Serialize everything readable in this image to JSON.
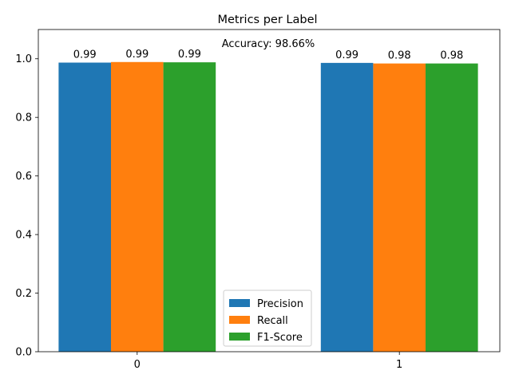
{
  "chart_data": {
    "type": "bar",
    "title": "Metrics per Label",
    "annotation": "Accuracy: 98.66%",
    "categories": [
      "0",
      "1"
    ],
    "series": [
      {
        "name": "Precision",
        "values": [
          0.987,
          0.986
        ],
        "labels": [
          "0.99",
          "0.99"
        ],
        "color": "#1f77b4"
      },
      {
        "name": "Recall",
        "values": [
          0.989,
          0.984
        ],
        "labels": [
          "0.99",
          "0.98"
        ],
        "color": "#ff7f0e"
      },
      {
        "name": "F1-Score",
        "values": [
          0.988,
          0.984
        ],
        "labels": [
          "0.99",
          "0.98"
        ],
        "color": "#2ca02c"
      }
    ],
    "ylim": [
      0,
      1.1
    ],
    "yticks": [
      "0.0",
      "0.2",
      "0.4",
      "0.6",
      "0.8",
      "1.0"
    ],
    "xlabel": "",
    "ylabel": "",
    "grid": false,
    "legend_position": "bottom-center"
  }
}
